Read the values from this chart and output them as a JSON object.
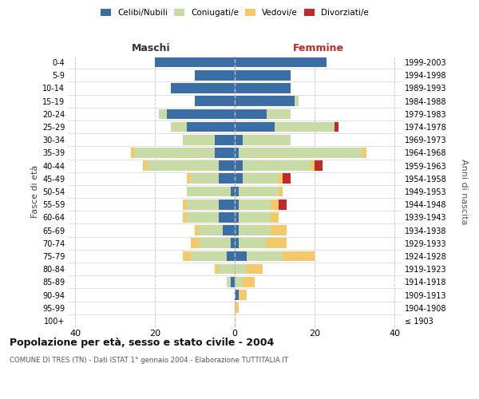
{
  "age_groups": [
    "100+",
    "95-99",
    "90-94",
    "85-89",
    "80-84",
    "75-79",
    "70-74",
    "65-69",
    "60-64",
    "55-59",
    "50-54",
    "45-49",
    "40-44",
    "35-39",
    "30-34",
    "25-29",
    "20-24",
    "15-19",
    "10-14",
    "5-9",
    "0-4"
  ],
  "birth_years": [
    "≤ 1903",
    "1904-1908",
    "1909-1913",
    "1914-1918",
    "1919-1923",
    "1924-1928",
    "1929-1933",
    "1934-1938",
    "1939-1943",
    "1944-1948",
    "1949-1953",
    "1954-1958",
    "1959-1963",
    "1964-1968",
    "1969-1973",
    "1974-1978",
    "1979-1983",
    "1984-1988",
    "1989-1993",
    "1994-1998",
    "1999-2003"
  ],
  "maschi": {
    "celibi": [
      0,
      0,
      0,
      1,
      0,
      2,
      1,
      3,
      4,
      4,
      1,
      4,
      4,
      5,
      5,
      12,
      17,
      10,
      16,
      10,
      20
    ],
    "coniugati": [
      0,
      0,
      0,
      1,
      4,
      9,
      8,
      6,
      8,
      8,
      11,
      7,
      18,
      20,
      8,
      4,
      2,
      0,
      0,
      0,
      0
    ],
    "vedovi": [
      0,
      0,
      0,
      0,
      1,
      2,
      2,
      1,
      1,
      1,
      0,
      1,
      1,
      1,
      0,
      0,
      0,
      0,
      0,
      0,
      0
    ],
    "divorziati": [
      0,
      0,
      0,
      0,
      0,
      0,
      0,
      0,
      0,
      0,
      0,
      0,
      0,
      0,
      0,
      0,
      0,
      0,
      0,
      0,
      0
    ]
  },
  "femmine": {
    "nubili": [
      0,
      0,
      1,
      0,
      0,
      3,
      1,
      1,
      1,
      1,
      1,
      2,
      2,
      1,
      2,
      10,
      8,
      15,
      14,
      14,
      23
    ],
    "coniugate": [
      0,
      0,
      0,
      2,
      3,
      9,
      7,
      8,
      8,
      8,
      10,
      9,
      17,
      31,
      12,
      15,
      6,
      1,
      0,
      0,
      0
    ],
    "vedove": [
      0,
      1,
      2,
      3,
      4,
      8,
      5,
      4,
      2,
      2,
      1,
      1,
      1,
      1,
      0,
      0,
      0,
      0,
      0,
      0,
      0
    ],
    "divorziate": [
      0,
      0,
      0,
      0,
      0,
      0,
      0,
      0,
      0,
      2,
      0,
      2,
      2,
      0,
      0,
      1,
      0,
      0,
      0,
      0,
      0
    ]
  },
  "colors": {
    "celibi_nubili": "#3a6ea5",
    "coniugati": "#c8dba5",
    "vedovi": "#f5c96a",
    "divorziati": "#c0282a"
  },
  "title_main": "Popolazione per età, sesso e stato civile - 2004",
  "title_sub": "COMUNE DI TRES (TN) - Dati ISTAT 1° gennaio 2004 - Elaborazione TUTTITALIA.IT",
  "label_maschi": "Maschi",
  "label_femmine": "Femmine",
  "ylabel_left": "Fasce di età",
  "ylabel_right": "Anni di nascita",
  "xlim": 42,
  "bg": "#ffffff",
  "grid_color": "#cccccc"
}
